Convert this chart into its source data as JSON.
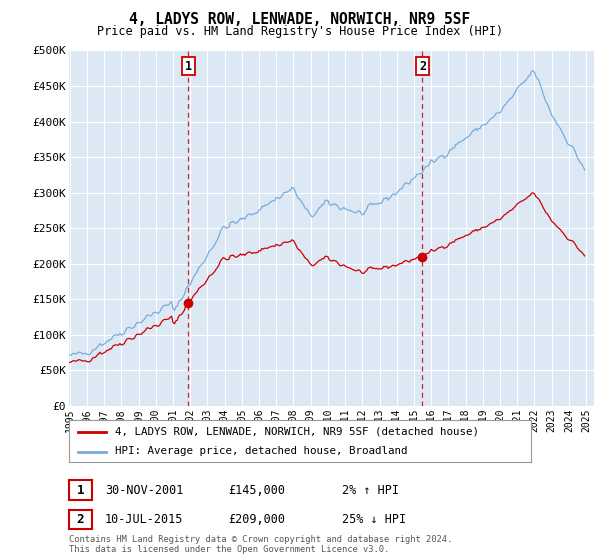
{
  "title": "4, LADYS ROW, LENWADE, NORWICH, NR9 5SF",
  "subtitle": "Price paid vs. HM Land Registry's House Price Index (HPI)",
  "background_color": "#ffffff",
  "plot_bg_color": "#dce9f5",
  "grid_color": "#ffffff",
  "sale1_date": "30-NOV-2001",
  "sale1_price": 145000,
  "sale1_hpi": "2% ↑ HPI",
  "sale2_date": "10-JUL-2015",
  "sale2_price": 209000,
  "sale2_hpi": "25% ↓ HPI",
  "legend_label_red": "4, LADYS ROW, LENWADE, NORWICH, NR9 5SF (detached house)",
  "legend_label_blue": "HPI: Average price, detached house, Broadland",
  "footer": "Contains HM Land Registry data © Crown copyright and database right 2024.\nThis data is licensed under the Open Government Licence v3.0.",
  "ylim": [
    0,
    500000
  ],
  "yticks": [
    0,
    50000,
    100000,
    150000,
    200000,
    250000,
    300000,
    350000,
    400000,
    450000,
    500000
  ],
  "ytick_labels": [
    "£0",
    "£50K",
    "£100K",
    "£150K",
    "£200K",
    "£250K",
    "£300K",
    "£350K",
    "£400K",
    "£450K",
    "£500K"
  ],
  "sale1_x": 2001.917,
  "sale2_x": 2015.536,
  "hpi_color": "#7aabdc",
  "price_color": "#cc0000",
  "vline_color": "#cc0000",
  "marker_color": "#cc0000",
  "xlim_left": 1995.0,
  "xlim_right": 2025.5
}
